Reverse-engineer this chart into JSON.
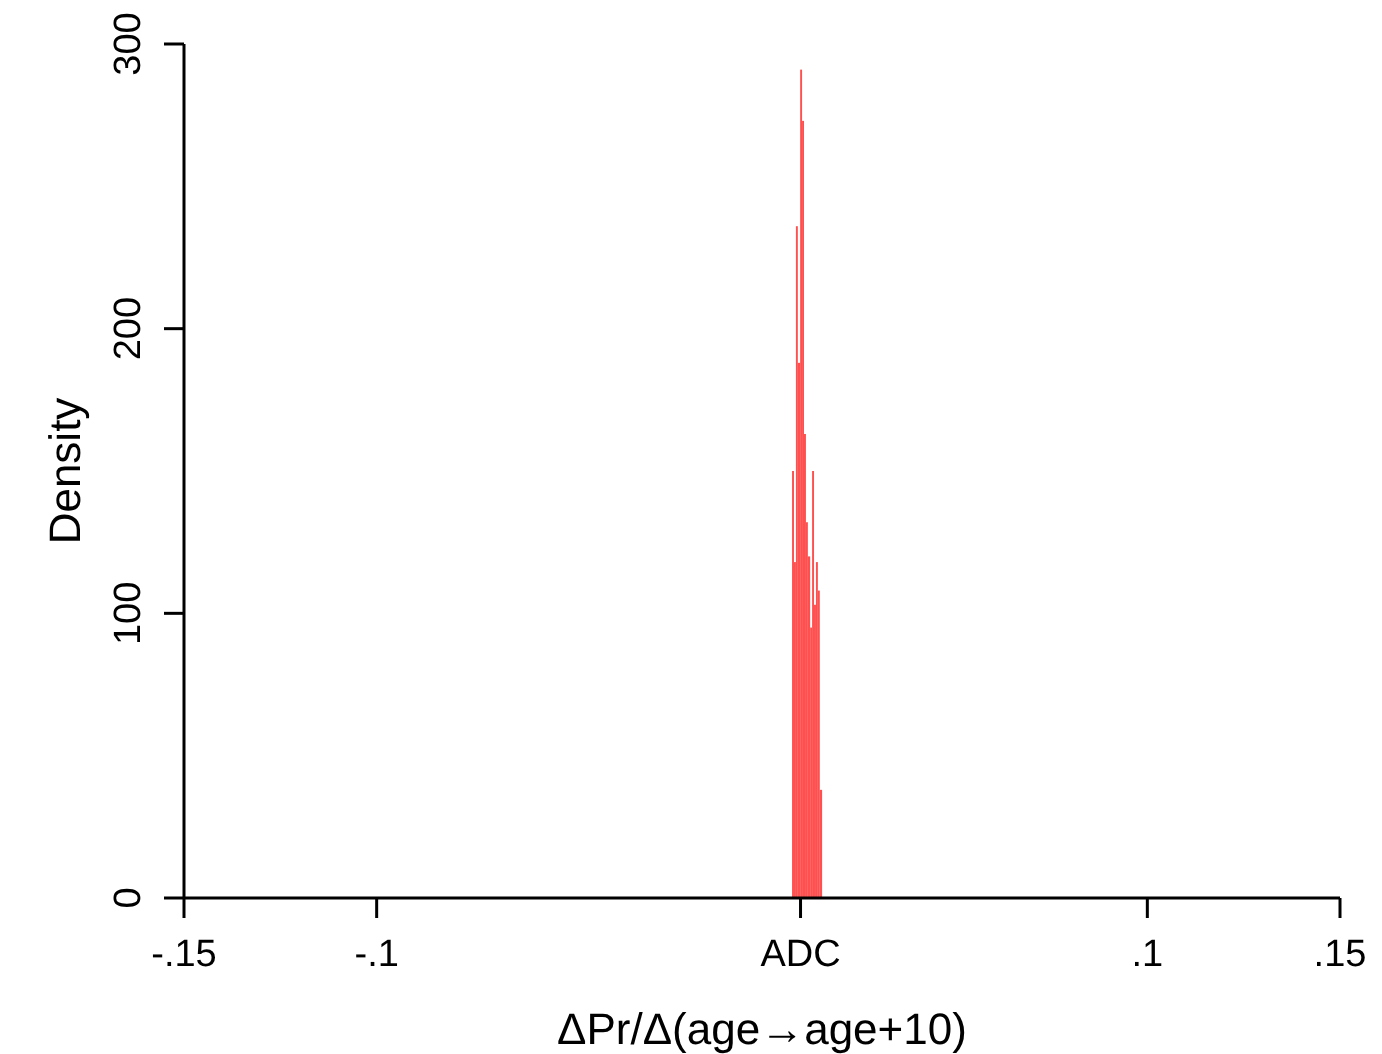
{
  "chart_data": {
    "type": "histogram",
    "xlabel": "ΔPr/Δ(age→age+10)",
    "ylabel": "Density",
    "bins": [
      0.0078,
      0.0083,
      0.0088,
      0.0093,
      0.0099,
      0.0104,
      0.0109,
      0.0114,
      0.0119,
      0.0125,
      0.013,
      0.0135,
      0.014,
      0.0145,
      0.015,
      0.0156
    ],
    "values": [
      150,
      118,
      236,
      188,
      291,
      273,
      163,
      132,
      120,
      95,
      150,
      103,
      118,
      108,
      38
    ],
    "color": "#ff5050",
    "xlim": [
      -0.15,
      0.15
    ],
    "xticks": [
      {
        "value": -0.15,
        "label": "-.15"
      },
      {
        "value": -0.1,
        "label": "-.1"
      },
      {
        "value": 0.01,
        "label": "ADC"
      },
      {
        "value": 0.1,
        "label": ".1"
      },
      {
        "value": 0.15,
        "label": ".15"
      }
    ],
    "ylim": [
      0,
      300
    ],
    "yticks": [
      0,
      100,
      200,
      300
    ],
    "grid": false
  }
}
